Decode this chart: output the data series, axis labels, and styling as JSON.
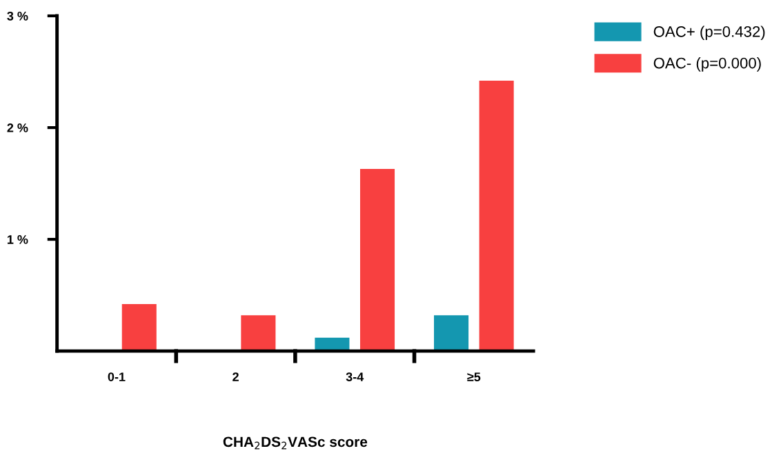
{
  "chart_data": {
    "type": "bar",
    "categories": [
      "0-1",
      "2",
      "3-4",
      "≥5"
    ],
    "series": [
      {
        "name": "OAC+ (p=0.432)",
        "color": "#1497b0",
        "values": [
          null,
          null,
          0.12,
          0.32
        ]
      },
      {
        "name": "OAC- (p=0.000)",
        "color": "#f84040",
        "values": [
          0.42,
          0.32,
          1.63,
          2.42
        ]
      }
    ],
    "xlabel": "CHA$_{2}$DS$_{2}$VASc score",
    "ylim": [
      0,
      3
    ],
    "yticks": [
      {
        "value": 1,
        "label": "1 %"
      },
      {
        "value": 2,
        "label": "2 %"
      },
      {
        "value": 3,
        "label": "3 %"
      }
    ],
    "legend": "top right",
    "grid": false
  }
}
